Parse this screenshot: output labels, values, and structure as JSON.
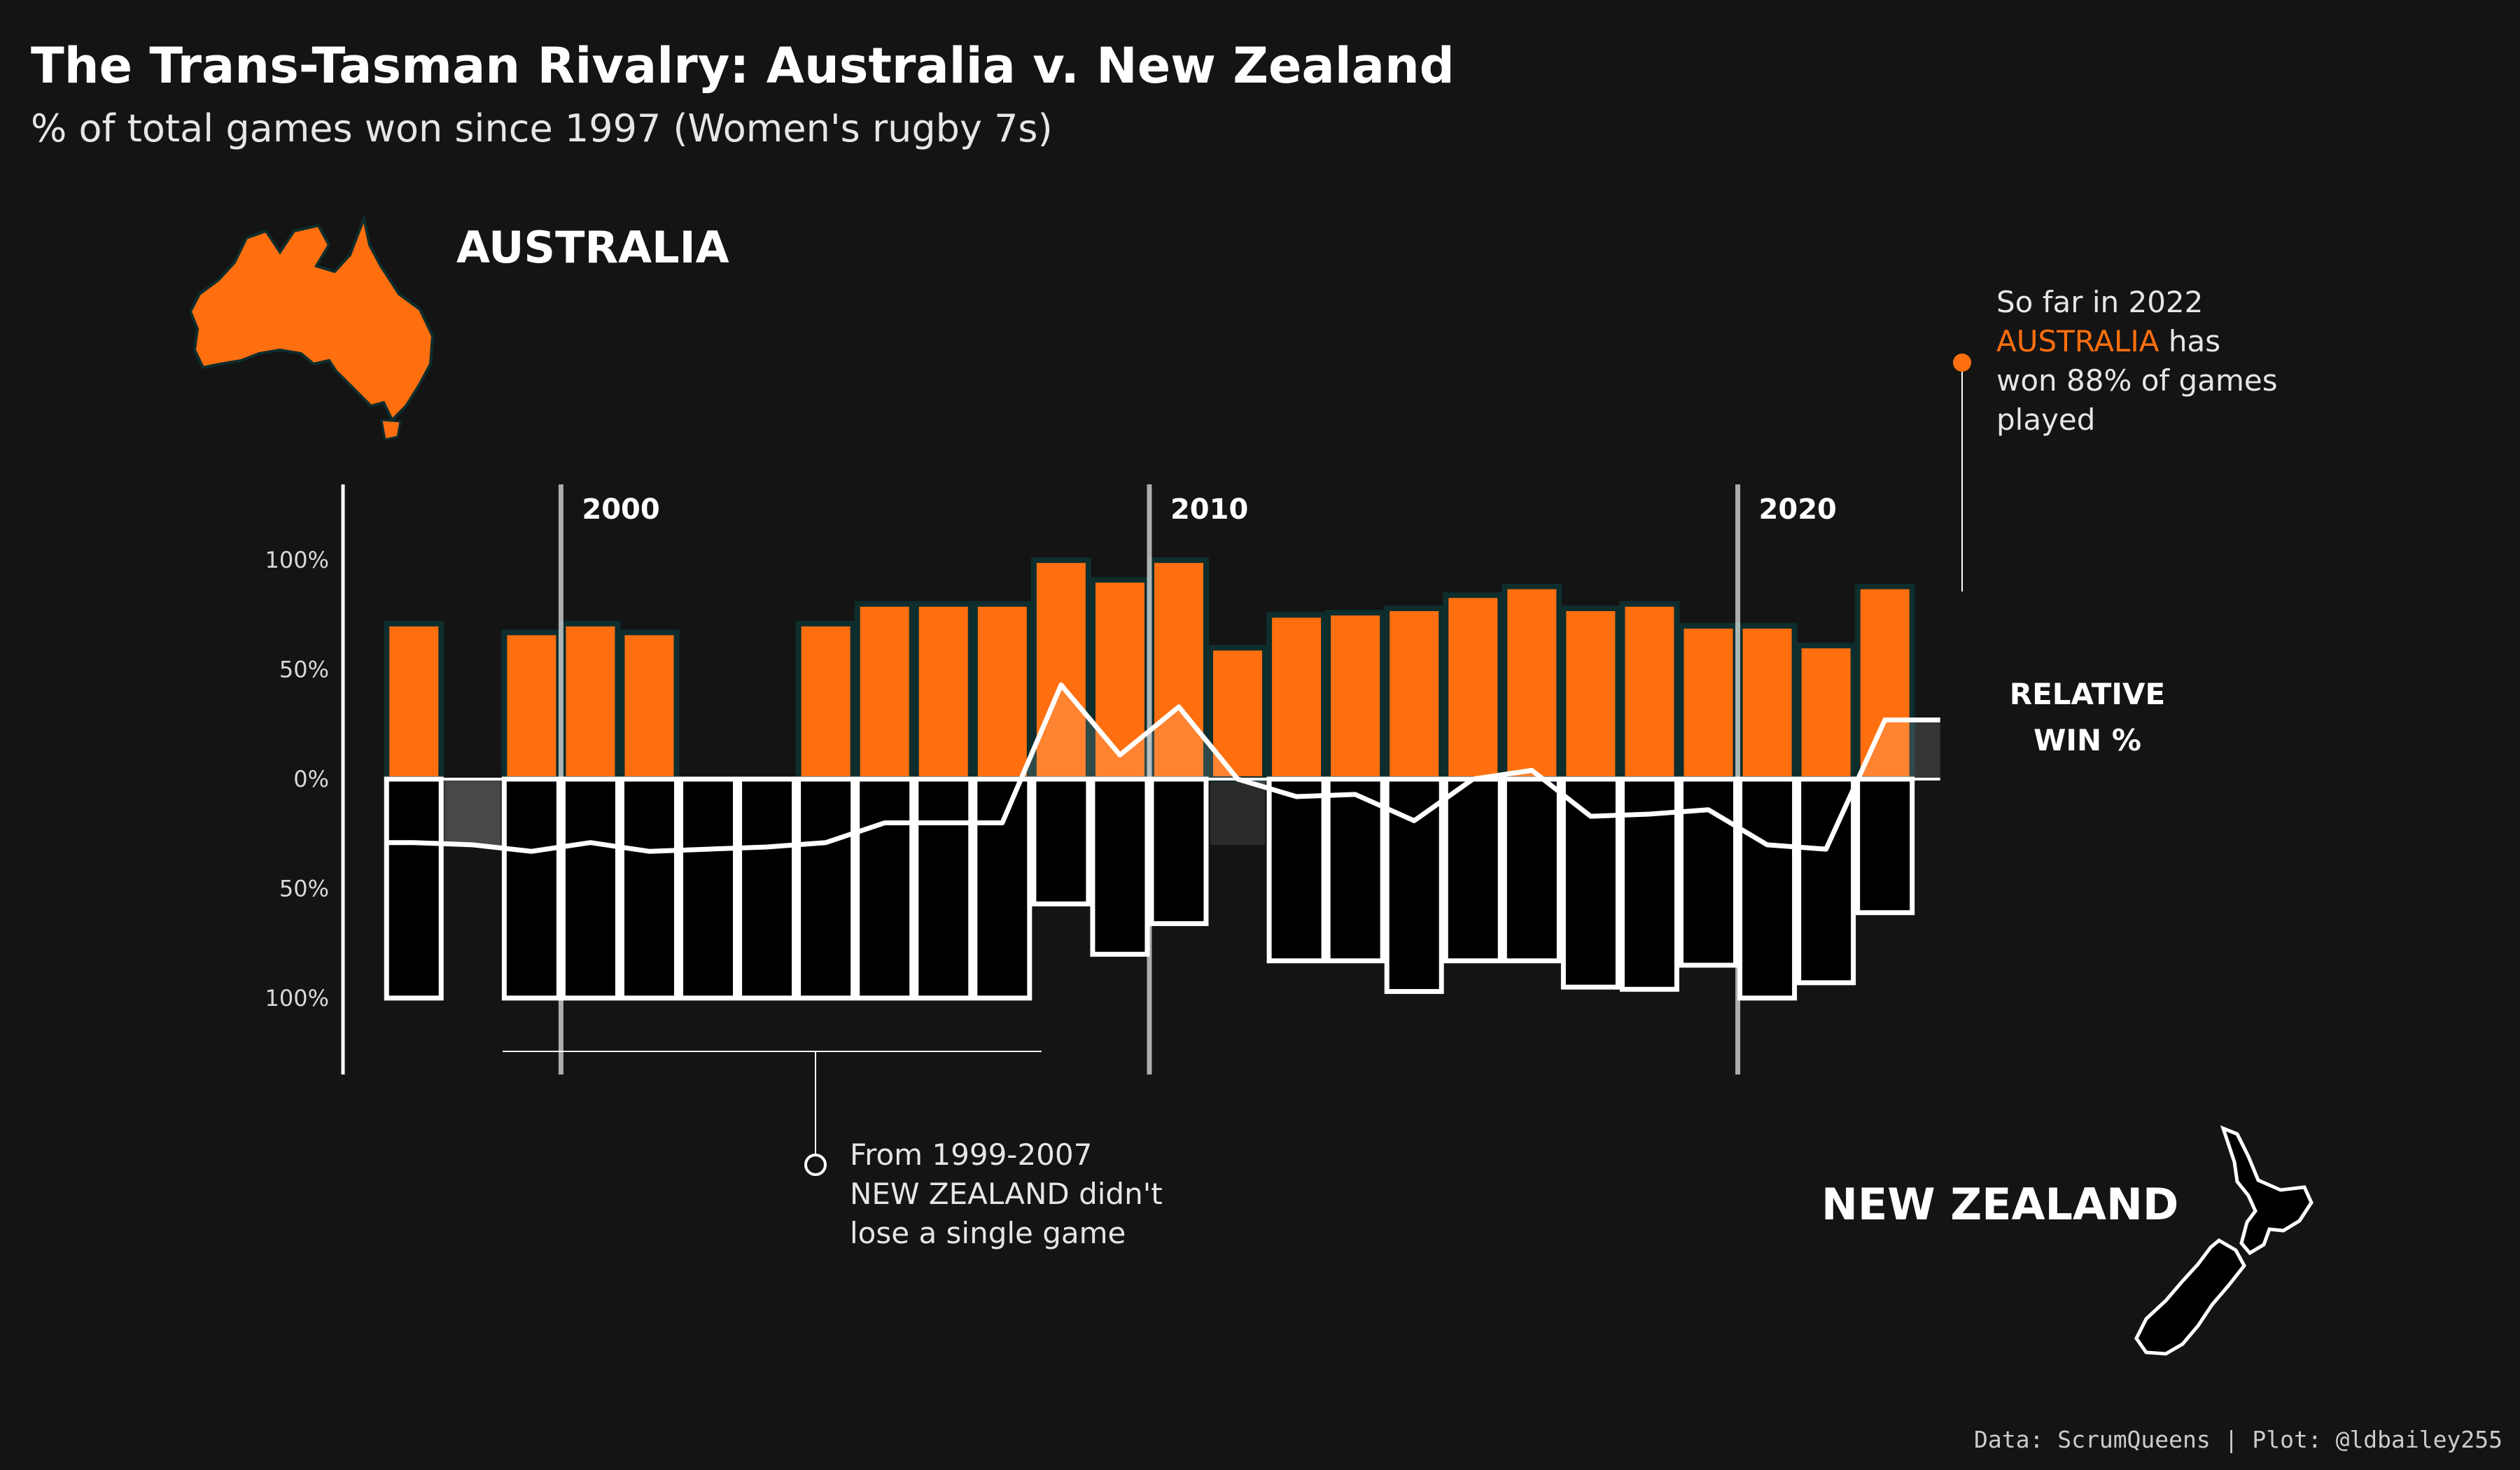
{
  "title": "The Trans-Tasman Rivalry: Australia v. New Zealand",
  "subtitle": "% of total games won since 1997 (Women's rugby 7s)",
  "labels": {
    "australia": "AUSTRALIA",
    "new_zealand": "NEW ZEALAND",
    "relative_line1": "RELATIVE",
    "relative_line2": "WIN %"
  },
  "annotations": {
    "aus_2022": {
      "line1": "So far in 2022",
      "highlight": "AUSTRALIA",
      "line2_rest": " has",
      "line3": "won 88% of games",
      "line4": "played"
    },
    "nz_streak": {
      "line1": "From 1999-2007",
      "line2": "NEW ZEALAND didn't",
      "line3": "lose a single game"
    }
  },
  "caption": "Data: ScrumQueens | Plot: @ldbailey255",
  "colors": {
    "background": "#141414",
    "australia": "#ff6f0f",
    "new_zealand": "#000000",
    "outline": "#ffffff",
    "bar_edge": "#0e2d2d"
  },
  "icons": {
    "australia_map": "australia-map-icon",
    "nz_map": "new-zealand-map-icon"
  },
  "chart_data": {
    "type": "bar",
    "decades": [
      {
        "year": 2000,
        "label": "2000"
      },
      {
        "year": 2010,
        "label": "2010"
      },
      {
        "year": 2020,
        "label": "2020"
      }
    ],
    "y_ticks": [
      {
        "value": 100,
        "label": "100%"
      },
      {
        "value": 50,
        "label": "50%"
      },
      {
        "value": 0,
        "label": "0%"
      },
      {
        "value": -50,
        "label": "50%"
      },
      {
        "value": -100,
        "label": "100%"
      }
    ],
    "ylim": [
      -125,
      125
    ],
    "xlim": [
      1996.2,
      2023.8
    ],
    "years": [
      1997,
      1998,
      1999,
      2000,
      2001,
      2002,
      2003,
      2004,
      2005,
      2006,
      2007,
      2008,
      2009,
      2010,
      2011,
      2012,
      2013,
      2014,
      2015,
      2016,
      2017,
      2018,
      2019,
      2020,
      2021,
      2022
    ],
    "australia_win_pct": [
      71,
      0,
      67,
      71,
      67,
      0,
      0,
      71,
      80,
      80,
      80,
      100,
      91,
      100,
      60,
      75,
      76,
      78,
      84,
      88,
      78,
      80,
      70,
      70,
      61,
      88
    ],
    "new_zealand_win_pct": [
      100,
      0,
      100,
      100,
      100,
      100,
      100,
      100,
      100,
      100,
      100,
      57,
      80,
      66,
      0,
      83,
      83,
      97,
      83,
      83,
      95,
      96,
      85,
      100,
      93,
      61
    ],
    "relative_win_pct": [
      -29,
      -30,
      -33,
      -29,
      -33,
      -32,
      -31,
      -29,
      -20,
      -20,
      -20,
      43,
      11,
      33,
      0,
      -8,
      -7,
      -19,
      0,
      4,
      -17,
      -16,
      -14,
      -30,
      -32,
      27
    ],
    "series": [
      {
        "name": "AUSTRALIA"
      },
      {
        "name": "NEW ZEALAND"
      },
      {
        "name": "RELATIVE WIN %"
      }
    ]
  }
}
